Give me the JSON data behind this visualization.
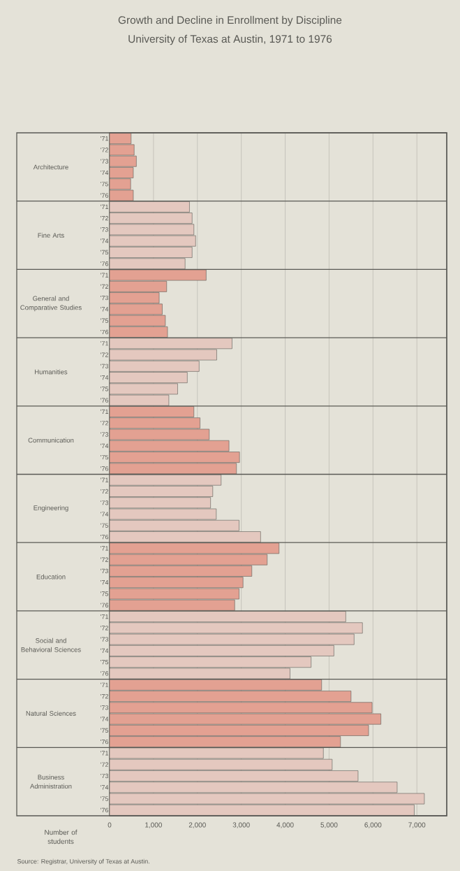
{
  "chart_data": {
    "type": "bar",
    "orientation": "horizontal",
    "title": "Growth and Decline in Enrollment by Discipline",
    "subtitle": "University of Texas at Austin, 1971 to 1976",
    "xlabel": "Number of students",
    "annotations": [
      "Source:  Registrar, University of Texas at Austin."
    ],
    "categories": [
      "Architecture",
      "Fine Arts",
      "General and Comparative Studies",
      "Humanities",
      "Communication",
      "Engineering",
      "Education",
      "Social and Behavioral Sciences",
      "Natural Sciences",
      "Business Administration"
    ],
    "series": [
      {
        "name": "'71",
        "colors": [
          "#e3a192",
          "#e4c8bf",
          "#e3a192",
          "#e4c8bf",
          "#e3a192",
          "#e4c8bf",
          "#e3a192",
          "#e4c8bf",
          "#e3a192",
          "#e4c8bf"
        ],
        "values": [
          490,
          1820,
          2200,
          2790,
          1920,
          2540,
          3860,
          5380,
          4830,
          4870
        ]
      },
      {
        "name": "'72",
        "colors": [
          "#e3a192",
          "#e4c8bf",
          "#e3a192",
          "#e4c8bf",
          "#e3a192",
          "#e4c8bf",
          "#e3a192",
          "#e4c8bf",
          "#e3a192",
          "#e4c8bf"
        ],
        "values": [
          560,
          1880,
          1300,
          2440,
          2060,
          2350,
          3590,
          5760,
          5500,
          5070
        ]
      },
      {
        "name": "'73",
        "colors": [
          "#e3a192",
          "#e4c8bf",
          "#e3a192",
          "#e4c8bf",
          "#e3a192",
          "#e4c8bf",
          "#e3a192",
          "#e4c8bf",
          "#e3a192",
          "#e4c8bf"
        ],
        "values": [
          610,
          1920,
          1130,
          2040,
          2270,
          2300,
          3240,
          5570,
          5980,
          5660
        ]
      },
      {
        "name": "'74",
        "colors": [
          "#e3a192",
          "#e4c8bf",
          "#e3a192",
          "#e4c8bf",
          "#e3a192",
          "#e4c8bf",
          "#e3a192",
          "#e4c8bf",
          "#e3a192",
          "#e4c8bf"
        ],
        "values": [
          540,
          1960,
          1200,
          1770,
          2720,
          2430,
          3040,
          5110,
          6180,
          6550
        ]
      },
      {
        "name": "'75",
        "colors": [
          "#e3a192",
          "#e4c8bf",
          "#e3a192",
          "#e4c8bf",
          "#e3a192",
          "#e4c8bf",
          "#e3a192",
          "#e4c8bf",
          "#e3a192",
          "#e4c8bf"
        ],
        "values": [
          480,
          1880,
          1270,
          1550,
          2960,
          2950,
          2950,
          4590,
          5900,
          7170
        ]
      },
      {
        "name": "'76",
        "colors": [
          "#e3a192",
          "#e4c8bf",
          "#e3a192",
          "#e4c8bf",
          "#e3a192",
          "#e4c8bf",
          "#e3a192",
          "#e4c8bf",
          "#e3a192",
          "#e4c8bf"
        ],
        "values": [
          540,
          1720,
          1320,
          1350,
          2890,
          3440,
          2850,
          4110,
          5260,
          6940
        ]
      }
    ],
    "xlim": [
      0,
      7680
    ],
    "xticks": [
      0,
      {
        "value": 1000,
        "label": "1,000"
      },
      {
        "value": 2000,
        "label": "2,000"
      },
      {
        "value": 3000,
        "label": "3,000"
      },
      {
        "value": 4000,
        "label": "4,000"
      },
      {
        "value": 5000,
        "label": "5,000"
      },
      {
        "value": 6000,
        "label": "6,000"
      },
      {
        "value": 7000,
        "label": "7,000"
      }
    ],
    "grid": "x"
  }
}
